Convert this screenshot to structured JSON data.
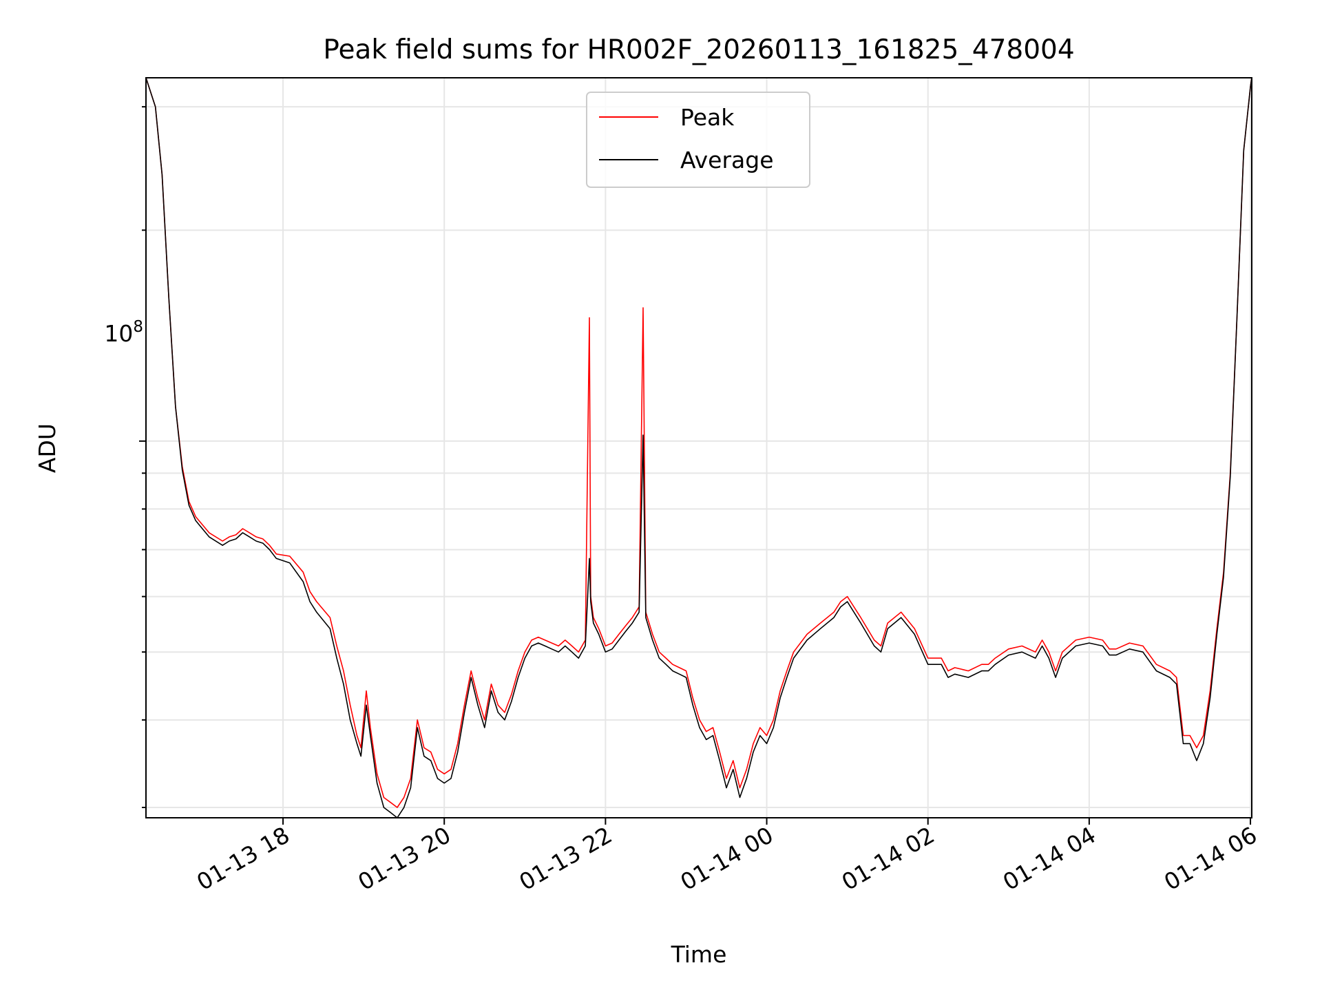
{
  "chart_data": {
    "type": "line",
    "title": "Peak field sums for HR002F_20260113_161825_478004",
    "xlabel": "Time",
    "ylabel": "ADU",
    "y_scale": "log",
    "y_tick_label": {
      "base": "10",
      "exponent": "8"
    },
    "ylim": [
      29000000.0,
      330000000.0
    ],
    "xlim": [
      "2026-01-13 16:18",
      "2026-01-14 06:01"
    ],
    "x_tick_labels": [
      "01-13 18",
      "01-13 20",
      "01-13 22",
      "01-14 00",
      "01-14 02",
      "01-14 04",
      "01-14 06"
    ],
    "x_tick_values": [
      "2026-01-13 18:00",
      "2026-01-13 20:00",
      "2026-01-13 22:00",
      "2026-01-14 00:00",
      "2026-01-14 02:00",
      "2026-01-14 04:00",
      "2026-01-14 06:00"
    ],
    "grid": true,
    "legend_position": "upper center",
    "series": [
      {
        "name": "Peak",
        "color": "#ff0000",
        "x": [
          "2026-01-13 16:18",
          "2026-01-13 16:25",
          "2026-01-13 16:30",
          "2026-01-13 16:35",
          "2026-01-13 16:40",
          "2026-01-13 16:45",
          "2026-01-13 16:50",
          "2026-01-13 16:55",
          "2026-01-13 17:05",
          "2026-01-13 17:15",
          "2026-01-13 17:20",
          "2026-01-13 17:25",
          "2026-01-13 17:30",
          "2026-01-13 17:35",
          "2026-01-13 17:40",
          "2026-01-13 17:45",
          "2026-01-13 17:50",
          "2026-01-13 17:55",
          "2026-01-13 18:05",
          "2026-01-13 18:15",
          "2026-01-13 18:20",
          "2026-01-13 18:25",
          "2026-01-13 18:35",
          "2026-01-13 18:40",
          "2026-01-13 18:45",
          "2026-01-13 18:50",
          "2026-01-13 18:55",
          "2026-01-13 18:58",
          "2026-01-13 19:02",
          "2026-01-13 19:05",
          "2026-01-13 19:10",
          "2026-01-13 19:15",
          "2026-01-13 19:20",
          "2026-01-13 19:25",
          "2026-01-13 19:30",
          "2026-01-13 19:35",
          "2026-01-13 19:40",
          "2026-01-13 19:45",
          "2026-01-13 19:50",
          "2026-01-13 19:55",
          "2026-01-13 20:00",
          "2026-01-13 20:05",
          "2026-01-13 20:10",
          "2026-01-13 20:15",
          "2026-01-13 20:20",
          "2026-01-13 20:25",
          "2026-01-13 20:30",
          "2026-01-13 20:35",
          "2026-01-13 20:40",
          "2026-01-13 20:45",
          "2026-01-13 20:50",
          "2026-01-13 20:55",
          "2026-01-13 21:00",
          "2026-01-13 21:05",
          "2026-01-13 21:10",
          "2026-01-13 21:15",
          "2026-01-13 21:20",
          "2026-01-13 21:25",
          "2026-01-13 21:30",
          "2026-01-13 21:35",
          "2026-01-13 21:40",
          "2026-01-13 21:45",
          "2026-01-13 21:48",
          "2026-01-13 21:49",
          "2026-01-13 21:51",
          "2026-01-13 21:55",
          "2026-01-13 22:00",
          "2026-01-13 22:05",
          "2026-01-13 22:10",
          "2026-01-13 22:15",
          "2026-01-13 22:20",
          "2026-01-13 22:25",
          "2026-01-13 22:28",
          "2026-01-13 22:30",
          "2026-01-13 22:35",
          "2026-01-13 22:40",
          "2026-01-13 22:45",
          "2026-01-13 22:50",
          "2026-01-13 22:55",
          "2026-01-13 23:00",
          "2026-01-13 23:05",
          "2026-01-13 23:10",
          "2026-01-13 23:15",
          "2026-01-13 23:20",
          "2026-01-13 23:25",
          "2026-01-13 23:30",
          "2026-01-13 23:35",
          "2026-01-13 23:40",
          "2026-01-13 23:45",
          "2026-01-13 23:50",
          "2026-01-13 23:55",
          "2026-01-14 00:00",
          "2026-01-14 00:05",
          "2026-01-14 00:10",
          "2026-01-14 00:15",
          "2026-01-14 00:20",
          "2026-01-14 00:30",
          "2026-01-14 00:40",
          "2026-01-14 00:50",
          "2026-01-14 00:55",
          "2026-01-14 01:00",
          "2026-01-14 01:10",
          "2026-01-14 01:20",
          "2026-01-14 01:25",
          "2026-01-14 01:30",
          "2026-01-14 01:40",
          "2026-01-14 01:50",
          "2026-01-14 02:00",
          "2026-01-14 02:10",
          "2026-01-14 02:15",
          "2026-01-14 02:20",
          "2026-01-14 02:30",
          "2026-01-14 02:40",
          "2026-01-14 02:45",
          "2026-01-14 02:50",
          "2026-01-14 03:00",
          "2026-01-14 03:10",
          "2026-01-14 03:20",
          "2026-01-14 03:25",
          "2026-01-14 03:30",
          "2026-01-14 03:35",
          "2026-01-14 03:40",
          "2026-01-14 03:50",
          "2026-01-14 04:00",
          "2026-01-14 04:10",
          "2026-01-14 04:15",
          "2026-01-14 04:20",
          "2026-01-14 04:30",
          "2026-01-14 04:40",
          "2026-01-14 04:50",
          "2026-01-14 05:00",
          "2026-01-14 05:05",
          "2026-01-14 05:10",
          "2026-01-14 05:15",
          "2026-01-14 05:20",
          "2026-01-14 05:25",
          "2026-01-14 05:30",
          "2026-01-14 05:35",
          "2026-01-14 05:40",
          "2026-01-14 05:45",
          "2026-01-14 05:50",
          "2026-01-14 05:55",
          "2026-01-14 06:00",
          "2026-01-14 06:01"
        ],
        "y": [
          330000000.0,
          300000000.0,
          240000000.0,
          160000000.0,
          112000000.0,
          92000000.0,
          82000000.0,
          78000000.0,
          74000000.0,
          72000000.0,
          73000000.0,
          73500000.0,
          75000000.0,
          74000000.0,
          73000000.0,
          72500000.0,
          71000000.0,
          69000000.0,
          68500000.0,
          65000000.0,
          61000000.0,
          59000000.0,
          56000000.0,
          51000000.0,
          47000000.0,
          42000000.0,
          38000000.0,
          36500000.0,
          44000000.0,
          39000000.0,
          33500000.0,
          31000000.0,
          30500000.0,
          30000000.0,
          31000000.0,
          33000000.0,
          40000000.0,
          36500000.0,
          36000000.0,
          34000000.0,
          33500000.0,
          34000000.0,
          37000000.0,
          42000000.0,
          47000000.0,
          43000000.0,
          40000000.0,
          45000000.0,
          42000000.0,
          41000000.0,
          43500000.0,
          47000000.0,
          50000000.0,
          52000000.0,
          52500000.0,
          52000000.0,
          51500000.0,
          51000000.0,
          52000000.0,
          51000000.0,
          50000000.0,
          52000000.0,
          150000000.0,
          60000000.0,
          56000000.0,
          54000000.0,
          51000000.0,
          51500000.0,
          53000000.0,
          54500000.0,
          56000000.0,
          58000000.0,
          155000000.0,
          57000000.0,
          53000000.0,
          50000000.0,
          49000000.0,
          48000000.0,
          47500000.0,
          47000000.0,
          43000000.0,
          40000000.0,
          38500000.0,
          39000000.0,
          36000000.0,
          33000000.0,
          35000000.0,
          32000000.0,
          34000000.0,
          37000000.0,
          39000000.0,
          38000000.0,
          40000000.0,
          44000000.0,
          47000000.0,
          50000000.0,
          53000000.0,
          55000000.0,
          57000000.0,
          59000000.0,
          60000000.0,
          56000000.0,
          52000000.0,
          51000000.0,
          55000000.0,
          57000000.0,
          54000000.0,
          49000000.0,
          49000000.0,
          47000000.0,
          47500000.0,
          47000000.0,
          48000000.0,
          48000000.0,
          49000000.0,
          50500000.0,
          51000000.0,
          50000000.0,
          52000000.0,
          50000000.0,
          47000000.0,
          50000000.0,
          52000000.0,
          52500000.0,
          52000000.0,
          50500000.0,
          50500000.0,
          51500000.0,
          51000000.0,
          48000000.0,
          47000000.0,
          46000000.0,
          38000000.0,
          38000000.0,
          36500000.0,
          38000000.0,
          44000000.0,
          54000000.0,
          65000000.0,
          90000000.0,
          150000000.0,
          260000000.0,
          320000000.0,
          330000000.0
        ]
      },
      {
        "name": "Average",
        "color": "#000000",
        "x": [
          "2026-01-13 16:18",
          "2026-01-13 16:25",
          "2026-01-13 16:30",
          "2026-01-13 16:35",
          "2026-01-13 16:40",
          "2026-01-13 16:45",
          "2026-01-13 16:50",
          "2026-01-13 16:55",
          "2026-01-13 17:05",
          "2026-01-13 17:15",
          "2026-01-13 17:20",
          "2026-01-13 17:25",
          "2026-01-13 17:30",
          "2026-01-13 17:35",
          "2026-01-13 17:40",
          "2026-01-13 17:45",
          "2026-01-13 17:50",
          "2026-01-13 17:55",
          "2026-01-13 18:05",
          "2026-01-13 18:15",
          "2026-01-13 18:20",
          "2026-01-13 18:25",
          "2026-01-13 18:35",
          "2026-01-13 18:40",
          "2026-01-13 18:45",
          "2026-01-13 18:50",
          "2026-01-13 18:55",
          "2026-01-13 18:58",
          "2026-01-13 19:02",
          "2026-01-13 19:05",
          "2026-01-13 19:10",
          "2026-01-13 19:15",
          "2026-01-13 19:20",
          "2026-01-13 19:25",
          "2026-01-13 19:30",
          "2026-01-13 19:35",
          "2026-01-13 19:40",
          "2026-01-13 19:45",
          "2026-01-13 19:50",
          "2026-01-13 19:55",
          "2026-01-13 20:00",
          "2026-01-13 20:05",
          "2026-01-13 20:10",
          "2026-01-13 20:15",
          "2026-01-13 20:20",
          "2026-01-13 20:25",
          "2026-01-13 20:30",
          "2026-01-13 20:35",
          "2026-01-13 20:40",
          "2026-01-13 20:45",
          "2026-01-13 20:50",
          "2026-01-13 20:55",
          "2026-01-13 21:00",
          "2026-01-13 21:05",
          "2026-01-13 21:10",
          "2026-01-13 21:15",
          "2026-01-13 21:20",
          "2026-01-13 21:25",
          "2026-01-13 21:30",
          "2026-01-13 21:35",
          "2026-01-13 21:40",
          "2026-01-13 21:45",
          "2026-01-13 21:48",
          "2026-01-13 21:49",
          "2026-01-13 21:51",
          "2026-01-13 21:55",
          "2026-01-13 22:00",
          "2026-01-13 22:05",
          "2026-01-13 22:10",
          "2026-01-13 22:15",
          "2026-01-13 22:20",
          "2026-01-13 22:25",
          "2026-01-13 22:28",
          "2026-01-13 22:30",
          "2026-01-13 22:35",
          "2026-01-13 22:40",
          "2026-01-13 22:45",
          "2026-01-13 22:50",
          "2026-01-13 22:55",
          "2026-01-13 23:00",
          "2026-01-13 23:05",
          "2026-01-13 23:10",
          "2026-01-13 23:15",
          "2026-01-13 23:20",
          "2026-01-13 23:25",
          "2026-01-13 23:30",
          "2026-01-13 23:35",
          "2026-01-13 23:40",
          "2026-01-13 23:45",
          "2026-01-13 23:50",
          "2026-01-13 23:55",
          "2026-01-14 00:00",
          "2026-01-14 00:05",
          "2026-01-14 00:10",
          "2026-01-14 00:15",
          "2026-01-14 00:20",
          "2026-01-14 00:30",
          "2026-01-14 00:40",
          "2026-01-14 00:50",
          "2026-01-14 00:55",
          "2026-01-14 01:00",
          "2026-01-14 01:10",
          "2026-01-14 01:20",
          "2026-01-14 01:25",
          "2026-01-14 01:30",
          "2026-01-14 01:40",
          "2026-01-14 01:50",
          "2026-01-14 02:00",
          "2026-01-14 02:10",
          "2026-01-14 02:15",
          "2026-01-14 02:20",
          "2026-01-14 02:30",
          "2026-01-14 02:40",
          "2026-01-14 02:45",
          "2026-01-14 02:50",
          "2026-01-14 03:00",
          "2026-01-14 03:10",
          "2026-01-14 03:20",
          "2026-01-14 03:25",
          "2026-01-14 03:30",
          "2026-01-14 03:35",
          "2026-01-14 03:40",
          "2026-01-14 03:50",
          "2026-01-14 04:00",
          "2026-01-14 04:10",
          "2026-01-14 04:15",
          "2026-01-14 04:20",
          "2026-01-14 04:30",
          "2026-01-14 04:40",
          "2026-01-14 04:50",
          "2026-01-14 05:00",
          "2026-01-14 05:05",
          "2026-01-14 05:10",
          "2026-01-14 05:15",
          "2026-01-14 05:20",
          "2026-01-14 05:25",
          "2026-01-14 05:30",
          "2026-01-14 05:35",
          "2026-01-14 05:40",
          "2026-01-14 05:45",
          "2026-01-14 05:50",
          "2026-01-14 05:55",
          "2026-01-14 06:00",
          "2026-01-14 06:01"
        ],
        "y": [
          330000000.0,
          300000000.0,
          240000000.0,
          160000000.0,
          112000000.0,
          91000000.0,
          81000000.0,
          77000000.0,
          73000000.0,
          71000000.0,
          72000000.0,
          72500000.0,
          74000000.0,
          73000000.0,
          72000000.0,
          71500000.0,
          70000000.0,
          68000000.0,
          67000000.0,
          63000000.0,
          59000000.0,
          57000000.0,
          54000000.0,
          49000000.0,
          45000000.0,
          40000000.0,
          37000000.0,
          35500000.0,
          42000000.0,
          38000000.0,
          32500000.0,
          30000000.0,
          29500000.0,
          29000000.0,
          30000000.0,
          32000000.0,
          39000000.0,
          35500000.0,
          35000000.0,
          33000000.0,
          32500000.0,
          33000000.0,
          36000000.0,
          41000000.0,
          46000000.0,
          42000000.0,
          39000000.0,
          44000000.0,
          41000000.0,
          40000000.0,
          42500000.0,
          46000000.0,
          49000000.0,
          51000000.0,
          51500000.0,
          51000000.0,
          50500000.0,
          50000000.0,
          51000000.0,
          50000000.0,
          49000000.0,
          51000000.0,
          68000000.0,
          59000000.0,
          55000000.0,
          53000000.0,
          50000000.0,
          50500000.0,
          52000000.0,
          53500000.0,
          55000000.0,
          57000000.0,
          102000000.0,
          56000000.0,
          52000000.0,
          49000000.0,
          48000000.0,
          47000000.0,
          46500000.0,
          46000000.0,
          42000000.0,
          39000000.0,
          37500000.0,
          38000000.0,
          35000000.0,
          32000000.0,
          34000000.0,
          31000000.0,
          33000000.0,
          36000000.0,
          38000000.0,
          37000000.0,
          39000000.0,
          43000000.0,
          46000000.0,
          49000000.0,
          52000000.0,
          54000000.0,
          56000000.0,
          58000000.0,
          59000000.0,
          55000000.0,
          51000000.0,
          50000000.0,
          54000000.0,
          56000000.0,
          53000000.0,
          48000000.0,
          48000000.0,
          46000000.0,
          46500000.0,
          46000000.0,
          47000000.0,
          47000000.0,
          48000000.0,
          49500000.0,
          50000000.0,
          49000000.0,
          51000000.0,
          49000000.0,
          46000000.0,
          49000000.0,
          51000000.0,
          51500000.0,
          51000000.0,
          49500000.0,
          49500000.0,
          50500000.0,
          50000000.0,
          47000000.0,
          46000000.0,
          45000000.0,
          37000000.0,
          37000000.0,
          35000000.0,
          37000000.0,
          43000000.0,
          53000000.0,
          64000000.0,
          89000000.0,
          150000000.0,
          260000000.0,
          320000000.0,
          330000000.0
        ]
      }
    ]
  }
}
